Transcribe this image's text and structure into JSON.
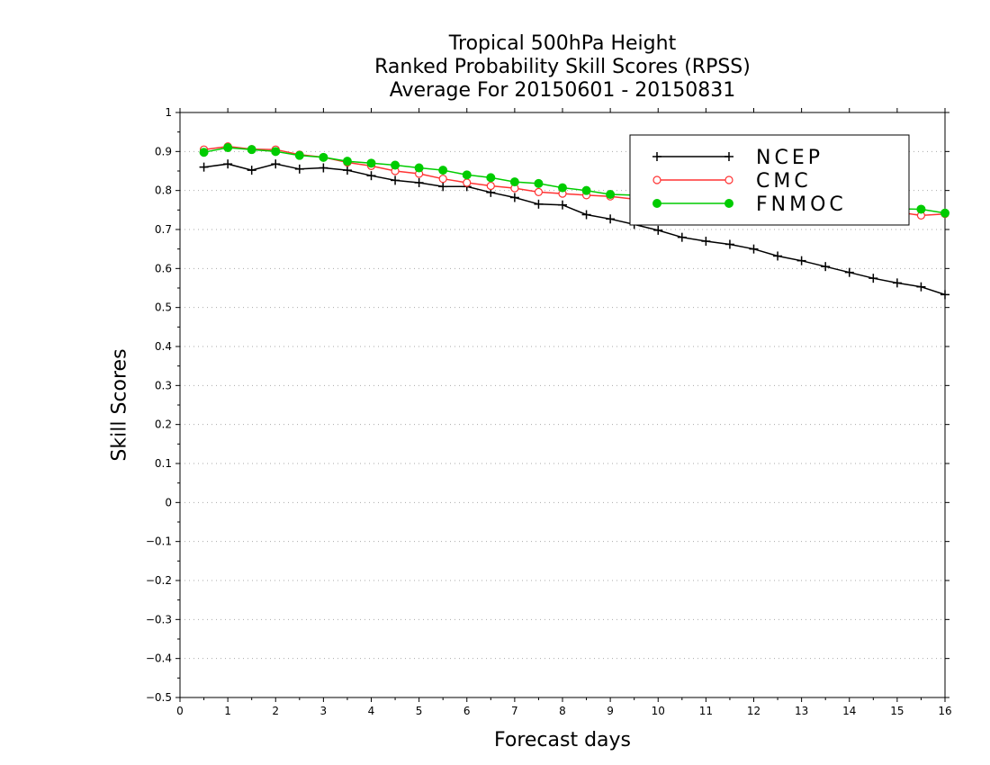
{
  "chart_data": {
    "type": "line",
    "title": [
      "Tropical 500hPa Height",
      "Ranked Probability Skill Scores (RPSS)",
      "Average For 20150601 - 20150831"
    ],
    "xlabel": "Forecast days",
    "ylabel": "Skill Scores",
    "xlim": [
      0,
      16
    ],
    "ylim": [
      -0.5,
      1
    ],
    "xticks": [
      "0",
      "1",
      "2",
      "3",
      "4",
      "5",
      "6",
      "7",
      "8",
      "9",
      "10",
      "11",
      "12",
      "13",
      "14",
      "15",
      "16"
    ],
    "yticks": [
      "-0.5",
      "-0.4",
      "-0.3",
      "-0.2",
      "-0.1",
      "0",
      "0.1",
      "0.2",
      "0.3",
      "0.4",
      "0.5",
      "0.6",
      "0.7",
      "0.8",
      "0.9",
      "1"
    ],
    "grid": true,
    "legend_position": "top-right",
    "x": [
      0.5,
      1,
      1.5,
      2,
      2.5,
      3,
      3.5,
      4,
      4.5,
      5,
      5.5,
      6,
      6.5,
      7,
      7.5,
      8,
      8.5,
      9,
      9.5,
      10,
      10.5,
      11,
      11.5,
      12,
      12.5,
      13,
      13.5,
      14,
      14.5,
      15,
      15.5,
      16
    ],
    "series": [
      {
        "name": "NCEP",
        "color": "#000000",
        "marker": "plus",
        "values": [
          0.86,
          0.868,
          0.852,
          0.868,
          0.855,
          0.858,
          0.852,
          0.838,
          0.826,
          0.82,
          0.81,
          0.81,
          0.795,
          0.782,
          0.765,
          0.763,
          0.738,
          0.727,
          0.713,
          0.698,
          0.68,
          0.67,
          0.662,
          0.65,
          0.632,
          0.62,
          0.605,
          0.59,
          0.575,
          0.563,
          0.553,
          0.533
        ]
      },
      {
        "name": "CMC",
        "color": "#ff3333",
        "marker": "open-circle",
        "values": [
          0.905,
          0.913,
          0.906,
          0.905,
          0.892,
          0.885,
          0.872,
          0.863,
          0.85,
          0.843,
          0.83,
          0.82,
          0.812,
          0.806,
          0.796,
          0.792,
          0.788,
          0.785,
          0.778,
          0.775,
          0.77,
          0.768,
          0.765,
          0.762,
          0.76,
          0.758,
          0.755,
          0.752,
          0.748,
          0.745,
          0.736,
          0.74
        ]
      },
      {
        "name": "FNMOC",
        "color": "#00cc00",
        "marker": "filled-circle",
        "values": [
          0.898,
          0.91,
          0.905,
          0.9,
          0.89,
          0.885,
          0.875,
          0.87,
          0.865,
          0.858,
          0.852,
          0.84,
          0.833,
          0.822,
          0.818,
          0.807,
          0.8,
          0.79,
          0.788,
          0.783,
          0.778,
          0.775,
          0.772,
          0.77,
          0.768,
          0.765,
          0.763,
          0.76,
          0.757,
          0.753,
          0.752,
          0.742
        ]
      }
    ]
  }
}
